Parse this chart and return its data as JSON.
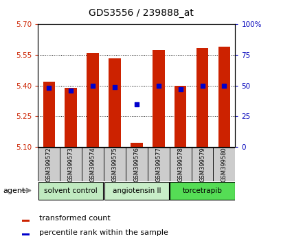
{
  "title": "GDS3556 / 239888_at",
  "samples": [
    "GSM399572",
    "GSM399573",
    "GSM399574",
    "GSM399575",
    "GSM399576",
    "GSM399577",
    "GSM399578",
    "GSM399579",
    "GSM399580"
  ],
  "transformed_counts": [
    5.42,
    5.39,
    5.56,
    5.535,
    5.12,
    5.575,
    5.4,
    5.585,
    5.59
  ],
  "percentile_ranks": [
    48,
    46,
    50,
    49,
    35,
    50,
    47,
    50,
    50
  ],
  "ylim_left": [
    5.1,
    5.7
  ],
  "ylim_right": [
    0,
    100
  ],
  "yticks_left": [
    5.1,
    5.25,
    5.4,
    5.55,
    5.7
  ],
  "yticks_right": [
    0,
    25,
    50,
    75,
    100
  ],
  "bar_color": "#cc2200",
  "dot_color": "#0000cc",
  "bar_bottom": 5.1,
  "bar_width": 0.55,
  "tick_label_color_left": "#cc2200",
  "tick_label_color_right": "#0000bb",
  "group_data": [
    {
      "label": "solvent control",
      "start": 0,
      "end": 2,
      "color": "#c0eac0"
    },
    {
      "label": "angiotensin II",
      "start": 3,
      "end": 5,
      "color": "#c8eec8"
    },
    {
      "label": "torcetrapib",
      "start": 6,
      "end": 8,
      "color": "#55dd55"
    }
  ],
  "legend_items": [
    "transformed count",
    "percentile rank within the sample"
  ],
  "agent_label": "agent"
}
